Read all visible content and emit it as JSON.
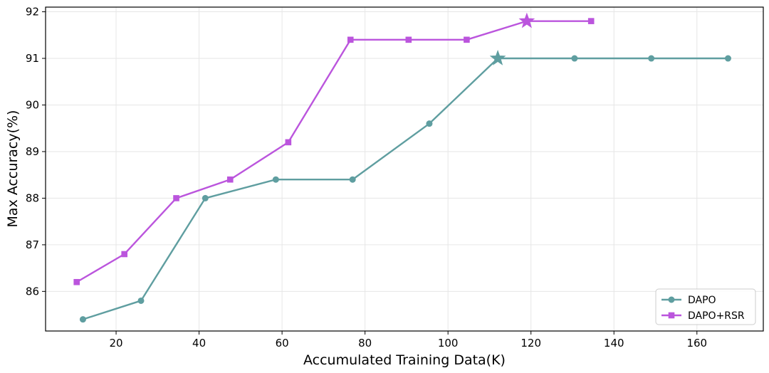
{
  "chart_data": {
    "type": "line",
    "xlabel": "Accumulated Training Data(K)",
    "ylabel": "Max Accuracy(%)",
    "xlim": [
      3,
      176
    ],
    "ylim": [
      85.15,
      92.1
    ],
    "xticks": [
      20,
      40,
      60,
      80,
      100,
      120,
      140,
      160
    ],
    "yticks": [
      86,
      87,
      88,
      89,
      90,
      91,
      92
    ],
    "grid": true,
    "legend_position": "lower-right",
    "series": [
      {
        "name": "DAPO",
        "color": "#5f9ea0",
        "marker": "circle",
        "x": [
          12,
          26,
          41.5,
          58.5,
          77,
          95.5,
          112,
          130.5,
          149,
          167.5
        ],
        "y": [
          85.4,
          85.8,
          88.0,
          88.4,
          88.4,
          89.6,
          91.0,
          91.0,
          91.0,
          91.0
        ],
        "best_index": 6
      },
      {
        "name": "DAPO+RSR",
        "color": "#bb55dd",
        "marker": "square",
        "x": [
          10.5,
          22,
          34.5,
          47.5,
          61.5,
          76.5,
          90.5,
          104.5,
          119,
          134.5
        ],
        "y": [
          86.2,
          86.8,
          88.0,
          88.4,
          89.2,
          91.4,
          91.4,
          91.4,
          91.8,
          91.8
        ],
        "best_index": 8
      }
    ]
  }
}
